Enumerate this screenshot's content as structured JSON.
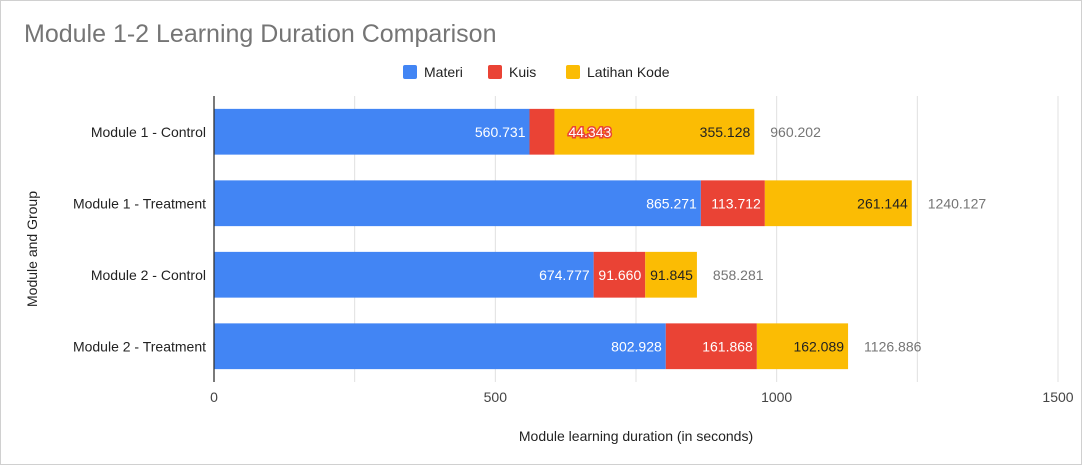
{
  "chart_data": {
    "type": "bar",
    "orientation": "horizontal",
    "stacked": true,
    "title": "Module 1-2 Learning Duration Comparison",
    "xlabel": "Module learning duration (in seconds)",
    "ylabel": "Module and Group",
    "xlim": [
      0,
      1500
    ],
    "x_ticks": [
      0,
      500,
      1000,
      1500
    ],
    "categories": [
      "Module 1 - Control",
      "Module 1 - Treatment",
      "Module 2 - Control",
      "Module 2 - Treatment"
    ],
    "series": [
      {
        "name": "Materi",
        "color": "#4285f4",
        "values": [
          560.731,
          865.271,
          674.777,
          802.928
        ],
        "labels": [
          "560.731",
          "865.271",
          "674.777",
          "802.928"
        ]
      },
      {
        "name": "Kuis",
        "color": "#ea4335",
        "values": [
          44.343,
          113.712,
          91.66,
          161.868
        ],
        "labels": [
          "44.343",
          "113.712",
          "91.660",
          "161.868"
        ]
      },
      {
        "name": "Latihan Kode",
        "color": "#fbbc04",
        "values": [
          355.128,
          261.144,
          91.845,
          162.089
        ],
        "labels": [
          "355.128",
          "261.144",
          "91.845",
          "162.089"
        ]
      }
    ],
    "totals": [
      "960.202",
      "1240.127",
      "858.281",
      "1126.886"
    ],
    "legend_position": "top",
    "grid": true
  }
}
